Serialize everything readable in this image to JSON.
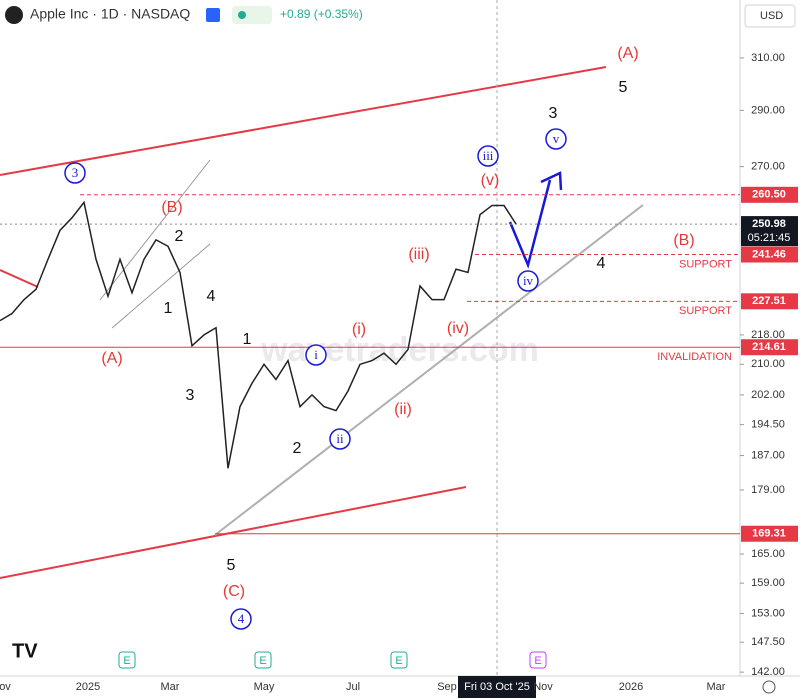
{
  "header": {
    "title": "Apple Inc · 1D · NASDAQ",
    "change": "+0.89 (+0.35%)",
    "currency": "USD",
    "crosshair_date": "Fri 03 Oct '25",
    "watermark": "wavetraders.com"
  },
  "chart_data": {
    "type": "line",
    "color": "#222222",
    "log_scale": true,
    "values": [
      222,
      224,
      228,
      231,
      240,
      249,
      253,
      258,
      240,
      229,
      240,
      230,
      240,
      246,
      244,
      236,
      215,
      218,
      220,
      184,
      199,
      205,
      210,
      206,
      211,
      199,
      202,
      199,
      198,
      203,
      210,
      211,
      213,
      210,
      214,
      232,
      228,
      228,
      237,
      236,
      254,
      257,
      257,
      251
    ],
    "ylim": [
      141.3,
      333.7
    ],
    "yticks": [
      {
        "value": 310,
        "label": "310.00"
      },
      {
        "value": 290,
        "label": "290.00"
      },
      {
        "value": 270,
        "label": "270.00"
      },
      {
        "value": 218,
        "label": "218.00"
      },
      {
        "value": 210,
        "label": "210.00"
      },
      {
        "value": 202,
        "label": "202.00"
      },
      {
        "value": 194.5,
        "label": "194.50"
      },
      {
        "value": 187,
        "label": "187.00"
      },
      {
        "value": 179,
        "label": "179.00"
      },
      {
        "value": 165,
        "label": "165.00"
      },
      {
        "value": 159,
        "label": "159.00"
      },
      {
        "value": 153,
        "label": "153.00"
      },
      {
        "value": 147.5,
        "label": "147.50"
      },
      {
        "value": 142,
        "label": "142.00"
      }
    ],
    "time_labels": [
      "ov",
      "2025",
      "Mar",
      "May",
      "Jul",
      "Sep",
      "Nov",
      "2026",
      "Mar"
    ],
    "levels": [
      {
        "value": 260.5,
        "label": "260.50"
      },
      {
        "value": 250.98,
        "label": "250.98",
        "countdown": "05:21:45"
      },
      {
        "value": 241.46,
        "label": "241.46",
        "note": "SUPPORT"
      },
      {
        "value": 227.51,
        "label": "227.51",
        "note": "SUPPORT"
      },
      {
        "value": 214.61,
        "label": "214.61",
        "note": "INVALIDATION"
      },
      {
        "value": 169.31,
        "label": "169.31"
      }
    ],
    "waves": [
      {
        "text": "(A)",
        "color": "#e53935"
      },
      {
        "text": "5",
        "color": "#111111"
      },
      {
        "text": "3",
        "color": "#111111"
      },
      {
        "text": "v",
        "color": "#1a1ad6",
        "circled": true
      },
      {
        "text": "iii",
        "color": "#1a1ad6",
        "circled": true
      },
      {
        "text": "(v)",
        "color": "#e53935"
      },
      {
        "text": "3",
        "color": "#1a1ad6",
        "circled": true
      },
      {
        "text": "(B)",
        "color": "#e53935"
      },
      {
        "text": "2",
        "color": "#111111"
      },
      {
        "text": "(iii)",
        "color": "#e53935"
      },
      {
        "text": "(B)",
        "color": "#e53935"
      },
      {
        "text": "4",
        "color": "#111111"
      },
      {
        "text": "iv",
        "color": "#1a1ad6",
        "circled": true
      },
      {
        "text": "1",
        "color": "#111111"
      },
      {
        "text": "4",
        "color": "#111111"
      },
      {
        "text": "(iv)",
        "color": "#e53935"
      },
      {
        "text": "(i)",
        "color": "#e53935"
      },
      {
        "text": "1",
        "color": "#111111"
      },
      {
        "text": "i",
        "color": "#1a1ad6",
        "circled": true
      },
      {
        "text": "(A)",
        "color": "#e53935"
      },
      {
        "text": "3",
        "color": "#111111"
      },
      {
        "text": "(ii)",
        "color": "#e53935"
      },
      {
        "text": "ii",
        "color": "#1a1ad6",
        "circled": true
      },
      {
        "text": "2",
        "color": "#111111"
      },
      {
        "text": "5",
        "color": "#111111"
      },
      {
        "text": "(C)",
        "color": "#e53935"
      },
      {
        "text": "4",
        "color": "#1a1ad6",
        "circled": true
      }
    ],
    "earnings_markers": [
      "E",
      "E",
      "E",
      "E"
    ]
  }
}
